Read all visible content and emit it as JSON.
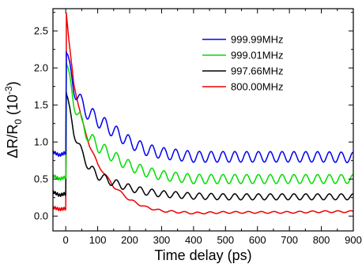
{
  "chart_data": {
    "type": "line",
    "title": "",
    "xlabel": "Time delay (ps)",
    "ylabel": {
      "main": "ΔR/R",
      "sub": "0",
      "paren_open": " (10",
      "sup": "-3",
      "paren_close": ")"
    },
    "xlim": [
      -40,
      900
    ],
    "ylim": [
      -0.2,
      2.8
    ],
    "x_ticks": [
      0,
      100,
      200,
      300,
      400,
      500,
      600,
      700,
      800,
      900
    ],
    "x_tick_labels": [
      "0",
      "100",
      "200",
      "300",
      "400",
      "500",
      "600",
      "700",
      "800",
      "900"
    ],
    "y_ticks": [
      0.0,
      0.5,
      1.0,
      1.5,
      2.0,
      2.5
    ],
    "y_tick_labels": [
      "0.0",
      "0.5",
      "1.0",
      "1.5",
      "2.0",
      "2.5"
    ],
    "grid": false,
    "legend_position": "top-right",
    "series": [
      {
        "name": "999.99MHz",
        "color": "#0000ee",
        "pre_level": 0.85,
        "peak": 2.2,
        "baseline": 0.8,
        "decay_ps": 60,
        "oscillation_amplitude": 0.07,
        "oscillation_period_ps": 37,
        "x": [
          -40,
          -20,
          -5,
          0,
          2,
          10,
          25,
          50,
          75,
          100,
          150,
          200,
          250,
          300,
          400,
          500,
          600,
          700,
          800,
          900
        ],
        "y": [
          0.87,
          0.82,
          0.85,
          0.85,
          2.2,
          2.0,
          1.75,
          1.5,
          1.38,
          1.3,
          1.15,
          1.0,
          0.9,
          0.85,
          0.8,
          0.8,
          0.8,
          0.8,
          0.8,
          0.79
        ]
      },
      {
        "name": "999.01MHz",
        "color": "#00dd00",
        "pre_level": 0.52,
        "peak": 2.05,
        "baseline": 0.5,
        "decay_ps": 55,
        "oscillation_amplitude": 0.06,
        "oscillation_period_ps": 37,
        "x": [
          -40,
          -20,
          -5,
          0,
          2,
          10,
          25,
          50,
          75,
          100,
          150,
          200,
          250,
          300,
          400,
          500,
          600,
          700,
          800,
          900
        ],
        "y": [
          0.55,
          0.5,
          0.52,
          0.52,
          2.05,
          1.85,
          1.55,
          1.25,
          1.05,
          0.95,
          0.8,
          0.68,
          0.6,
          0.55,
          0.5,
          0.5,
          0.5,
          0.5,
          0.5,
          0.5
        ]
      },
      {
        "name": "997.66MHz",
        "color": "#000000",
        "pre_level": 0.3,
        "peak": 1.65,
        "baseline": 0.26,
        "decay_ps": 45,
        "oscillation_amplitude": 0.04,
        "oscillation_period_ps": 37,
        "x": [
          -40,
          -20,
          -5,
          0,
          2,
          10,
          25,
          50,
          75,
          100,
          150,
          200,
          250,
          300,
          400,
          500,
          600,
          700,
          800,
          900
        ],
        "y": [
          0.33,
          0.28,
          0.3,
          0.3,
          1.65,
          1.45,
          1.15,
          0.85,
          0.65,
          0.55,
          0.45,
          0.38,
          0.33,
          0.3,
          0.27,
          0.26,
          0.26,
          0.26,
          0.26,
          0.26
        ]
      },
      {
        "name": "800.00MHz",
        "color": "#ee0000",
        "pre_level": 0.1,
        "peak": 2.72,
        "baseline": 0.05,
        "decay_ps": 60,
        "oscillation_amplitude": 0.012,
        "oscillation_period_ps": 40,
        "x": [
          -40,
          -20,
          -5,
          0,
          2,
          10,
          25,
          50,
          75,
          100,
          150,
          200,
          250,
          300,
          400,
          500,
          600,
          700,
          800,
          900
        ],
        "y": [
          0.12,
          0.09,
          0.1,
          0.1,
          2.72,
          2.35,
          1.8,
          1.3,
          0.95,
          0.7,
          0.4,
          0.22,
          0.12,
          0.07,
          0.04,
          0.05,
          0.05,
          0.05,
          0.06,
          0.06
        ]
      }
    ]
  }
}
